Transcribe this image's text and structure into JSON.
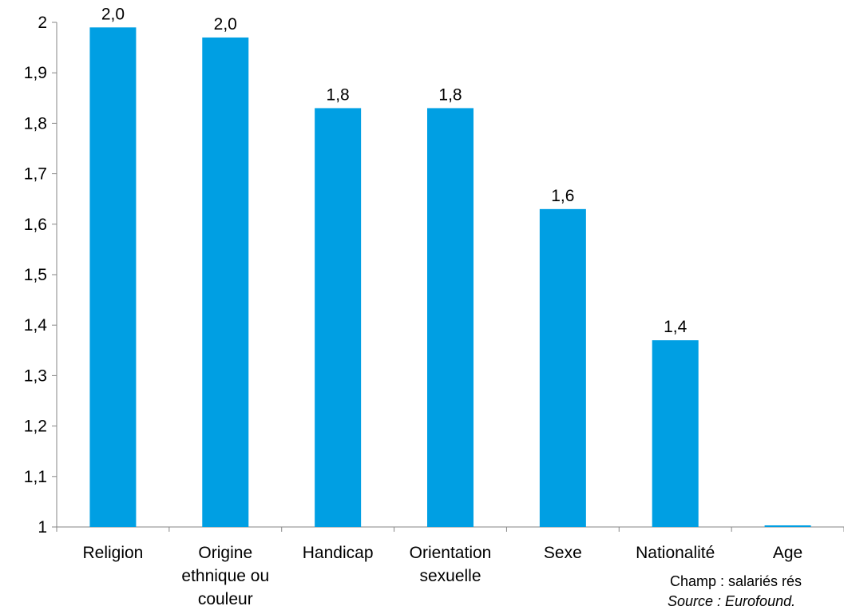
{
  "chart_data": {
    "type": "bar",
    "categories": [
      [
        "Religion"
      ],
      [
        "Origine",
        "ethnique ou",
        "couleur"
      ],
      [
        "Handicap"
      ],
      [
        "Orientation",
        "sexuelle"
      ],
      [
        "Sexe"
      ],
      [
        "Nationalité"
      ],
      [
        "Age"
      ]
    ],
    "values": [
      1.99,
      1.97,
      1.83,
      1.83,
      1.63,
      1.37,
      1.0
    ],
    "data_labels": [
      "2,0",
      "2,0",
      "1,8",
      "1,8",
      "1,6",
      "1,4",
      ""
    ],
    "y_ticks": [
      "1",
      "1,1",
      "1,2",
      "1,3",
      "1,4",
      "1,5",
      "1,6",
      "1,7",
      "1,8",
      "1,9",
      "2"
    ],
    "ylim": [
      1,
      2
    ],
    "bar_color": "#009FE3",
    "grid": false,
    "title": "",
    "xlabel": "",
    "ylabel": ""
  },
  "notes": {
    "champ": "Champ : salariés rés",
    "source": "Source : Eurofound."
  }
}
